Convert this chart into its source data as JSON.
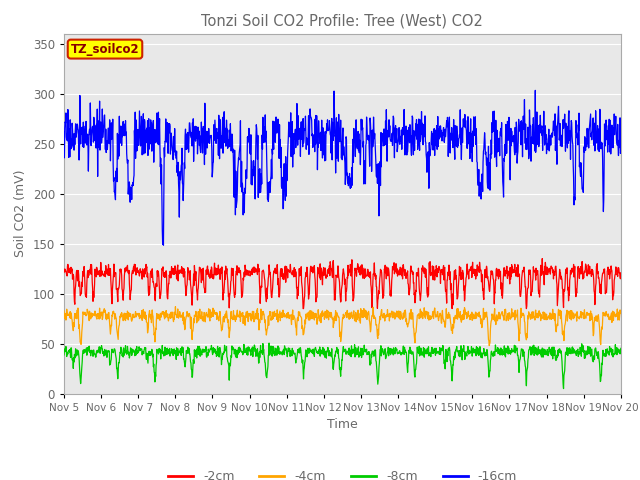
{
  "title": "Tonzi Soil CO2 Profile: Tree (West) CO2",
  "ylabel": "Soil CO2 (mV)",
  "xlabel": "Time",
  "ylim": [
    0,
    360
  ],
  "yticks": [
    0,
    50,
    100,
    150,
    200,
    250,
    300,
    350
  ],
  "xtick_labels": [
    "Nov 5",
    "Nov 6",
    "Nov 7",
    "Nov 8",
    "Nov 9",
    "Nov 10",
    "Nov 11",
    "Nov 12",
    "Nov 13",
    "Nov 14",
    "Nov 15",
    "Nov 16",
    "Nov 17",
    "Nov 18",
    "Nov 19",
    "Nov 20"
  ],
  "legend_labels": [
    "-2cm",
    "-4cm",
    "-8cm",
    "-16cm"
  ],
  "legend_colors": [
    "#ff0000",
    "#ffa500",
    "#00cc00",
    "#0000ff"
  ],
  "bg_color": "#e8e8e8",
  "series_colors": [
    "#ff0000",
    "#ffa500",
    "#00cc00",
    "#0000ff"
  ],
  "text_color": "#696969",
  "tag_text": "TZ_soilco2",
  "tag_bg": "#ffff00",
  "tag_border": "#cc2200",
  "figsize": [
    6.4,
    4.8
  ],
  "dpi": 100
}
